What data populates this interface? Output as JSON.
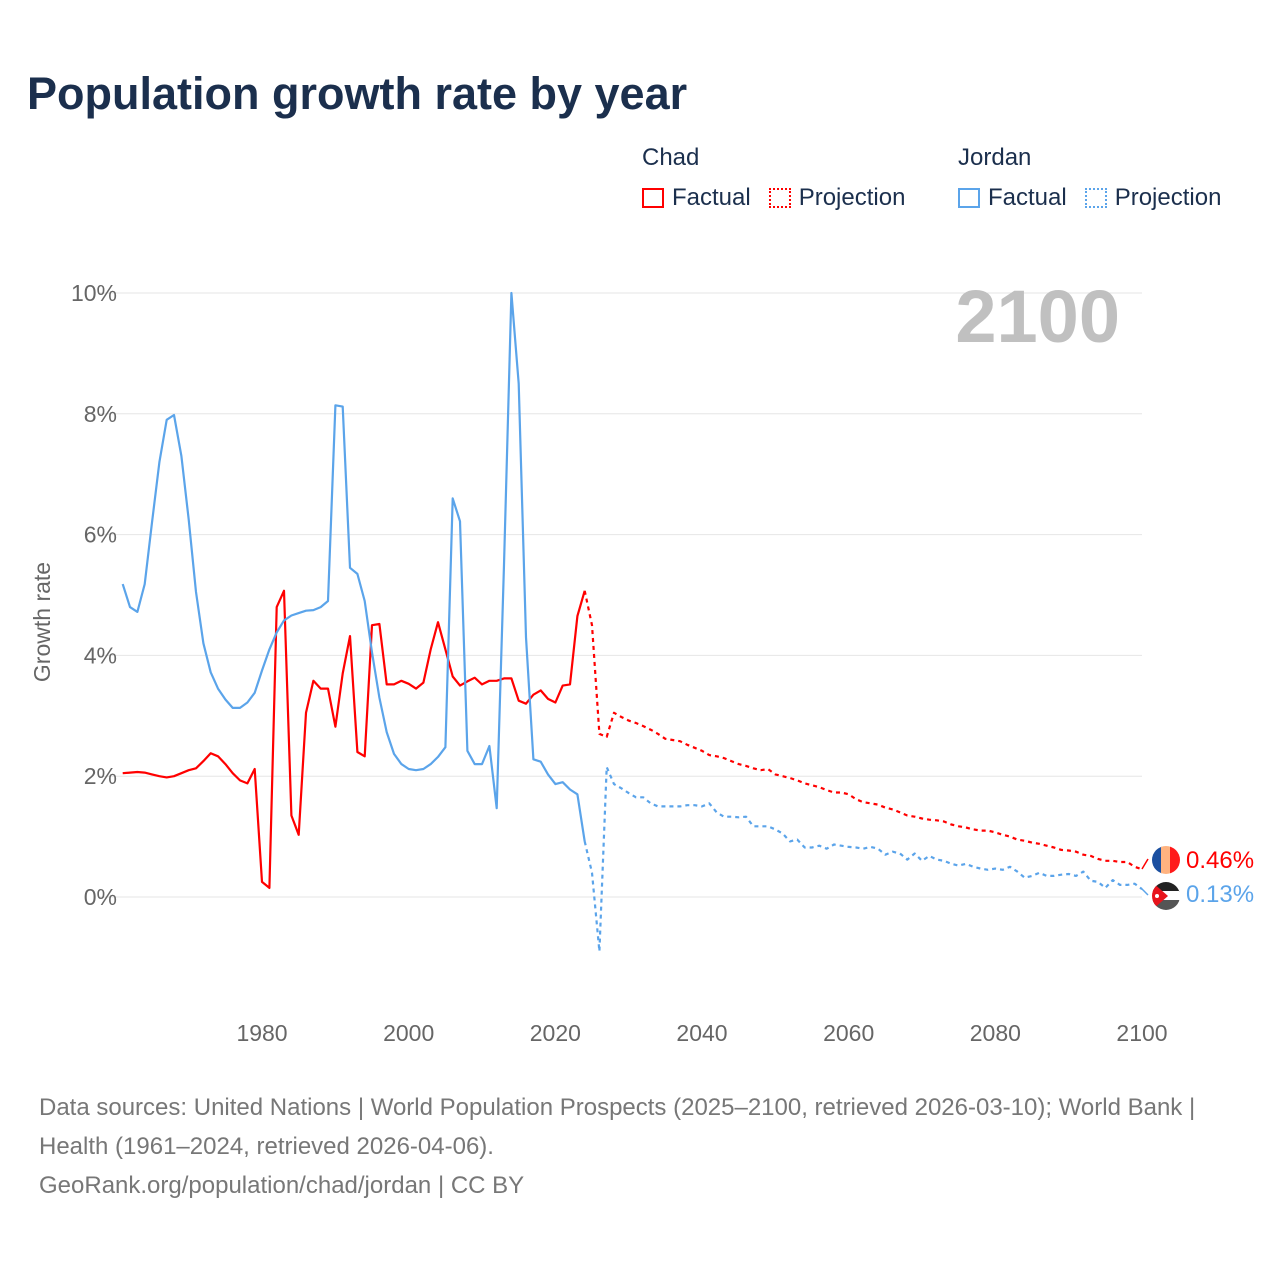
{
  "title": "Population growth rate by year",
  "legend": {
    "groups": [
      {
        "country": "Chad",
        "factual": "Factual",
        "projection": "Projection",
        "color": "#ff0000"
      },
      {
        "country": "Jordan",
        "factual": "Factual",
        "projection": "Projection",
        "color": "#5ba4ea"
      }
    ]
  },
  "year_label": "2100",
  "end_labels": {
    "chad": "0.46%",
    "jordan": "0.13%"
  },
  "footer": {
    "sources": "Data sources: United Nations | World Population Prospects (2025–2100, retrieved 2026-03-10); World Bank | Health (1961–2024, retrieved 2026-04-06).",
    "credit": "GeoRank.org/population/chad/jordan | CC BY"
  },
  "chart_data": {
    "type": "line",
    "title": "Population growth rate by year",
    "xlabel": "",
    "ylabel": "Growth rate",
    "xlim": [
      1961,
      2100
    ],
    "ylim": [
      -1.8,
      10
    ],
    "x_ticks": [
      "1980",
      "2000",
      "2020",
      "2040",
      "2060",
      "2080",
      "2100"
    ],
    "y_ticks": [
      "0%",
      "2%",
      "4%",
      "6%",
      "8%",
      "10%"
    ],
    "grid": true,
    "series": [
      {
        "name": "Chad Factual",
        "color": "#ff0000",
        "dashed": false,
        "start_year": 1961,
        "values": [
          2.05,
          2.06,
          2.07,
          2.06,
          2.03,
          2.0,
          1.98,
          2.0,
          2.05,
          2.1,
          2.13,
          2.25,
          2.38,
          2.33,
          2.2,
          2.05,
          1.93,
          1.88,
          2.12,
          0.25,
          0.15,
          4.8,
          5.07,
          1.35,
          1.03,
          3.05,
          3.58,
          3.45,
          3.45,
          2.82,
          3.7,
          4.32,
          2.4,
          2.33,
          4.5,
          4.52,
          3.52,
          3.52,
          3.58,
          3.53,
          3.45,
          3.55,
          4.1,
          4.55,
          4.1,
          3.65,
          3.5,
          3.57,
          3.63,
          3.52,
          3.58,
          3.58,
          3.62,
          3.62,
          3.25,
          3.2,
          3.35,
          3.42,
          3.28,
          3.22,
          3.5,
          3.52,
          4.65,
          5.07
        ]
      },
      {
        "name": "Chad Projection",
        "color": "#ff0000",
        "dashed": true,
        "start_year": 2024,
        "values": [
          5.07,
          4.5,
          2.7,
          2.65,
          3.05,
          2.98,
          2.92,
          2.88,
          2.83,
          2.77,
          2.7,
          2.62,
          2.6,
          2.58,
          2.52,
          2.47,
          2.42,
          2.35,
          2.33,
          2.3,
          2.25,
          2.2,
          2.17,
          2.13,
          2.1,
          2.12,
          2.03,
          2.0,
          1.97,
          1.93,
          1.88,
          1.85,
          1.82,
          1.77,
          1.73,
          1.73,
          1.7,
          1.62,
          1.57,
          1.55,
          1.53,
          1.48,
          1.45,
          1.4,
          1.35,
          1.33,
          1.3,
          1.28,
          1.27,
          1.25,
          1.2,
          1.17,
          1.15,
          1.12,
          1.1,
          1.1,
          1.07,
          1.03,
          1.0,
          0.95,
          0.93,
          0.9,
          0.88,
          0.85,
          0.82,
          0.78,
          0.77,
          0.75,
          0.7,
          0.68,
          0.63,
          0.6,
          0.6,
          0.58,
          0.58,
          0.5,
          0.46
        ]
      },
      {
        "name": "Jordan Factual",
        "color": "#5ba4ea",
        "dashed": false,
        "start_year": 1961,
        "values": [
          5.18,
          4.8,
          4.72,
          5.18,
          6.2,
          7.2,
          7.9,
          7.98,
          7.3,
          6.25,
          5.05,
          4.2,
          3.72,
          3.45,
          3.27,
          3.13,
          3.13,
          3.22,
          3.38,
          3.75,
          4.1,
          4.38,
          4.58,
          4.66,
          4.7,
          4.74,
          4.75,
          4.8,
          4.9,
          8.14,
          8.12,
          5.45,
          5.35,
          4.9,
          4.05,
          3.3,
          2.73,
          2.37,
          2.2,
          2.12,
          2.1,
          2.12,
          2.2,
          2.32,
          2.48,
          6.6,
          6.22,
          2.42,
          2.2,
          2.2,
          2.5,
          1.47,
          5.5,
          10.0,
          8.5,
          4.3,
          2.28,
          2.24,
          2.03,
          1.87,
          1.9,
          1.78,
          1.7,
          0.92
        ]
      },
      {
        "name": "Jordan Projection",
        "color": "#5ba4ea",
        "dashed": true,
        "start_year": 2024,
        "values": [
          0.92,
          0.4,
          -0.9,
          2.15,
          1.87,
          1.8,
          1.72,
          1.65,
          1.65,
          1.55,
          1.5,
          1.5,
          1.5,
          1.5,
          1.52,
          1.52,
          1.5,
          1.55,
          1.4,
          1.33,
          1.33,
          1.32,
          1.33,
          1.17,
          1.17,
          1.17,
          1.12,
          1.05,
          0.92,
          0.95,
          0.82,
          0.82,
          0.85,
          0.8,
          0.87,
          0.85,
          0.83,
          0.82,
          0.8,
          0.83,
          0.8,
          0.7,
          0.75,
          0.72,
          0.62,
          0.72,
          0.6,
          0.68,
          0.62,
          0.6,
          0.55,
          0.52,
          0.55,
          0.5,
          0.47,
          0.45,
          0.47,
          0.45,
          0.5,
          0.42,
          0.32,
          0.35,
          0.4,
          0.35,
          0.35,
          0.37,
          0.38,
          0.35,
          0.42,
          0.27,
          0.25,
          0.15,
          0.28,
          0.2,
          0.2,
          0.22,
          0.13
        ]
      }
    ]
  }
}
